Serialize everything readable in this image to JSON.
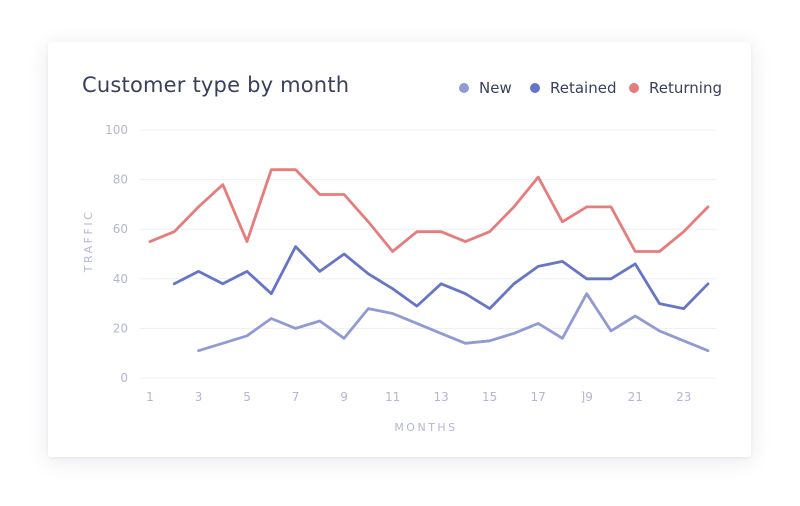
{
  "chart_data": {
    "type": "line",
    "title": "Customer type by month",
    "xlabel": "MONTHS",
    "ylabel": "TRAFFIC",
    "xlim": [
      1,
      24
    ],
    "ylim": [
      0,
      100
    ],
    "x_ticks": [
      "1",
      "3",
      "5",
      "7",
      "9",
      "11",
      "13",
      "15",
      "17",
      "]9",
      "21",
      "23"
    ],
    "y_ticks": [
      0,
      20,
      40,
      60,
      80,
      100
    ],
    "grid": true,
    "legend_position": "top-right",
    "series": [
      {
        "name": "New",
        "color": "#929ad3",
        "x": [
          3,
          4,
          5,
          6,
          7,
          8,
          9,
          10,
          11,
          12,
          13,
          14,
          15,
          16,
          17,
          18,
          19,
          20,
          21,
          22,
          23,
          24
        ],
        "y": [
          11,
          14,
          17,
          24,
          20,
          23,
          16,
          28,
          26,
          22,
          18,
          14,
          15,
          18,
          22,
          16,
          34,
          19,
          25,
          19,
          15,
          11
        ]
      },
      {
        "name": "Retained",
        "color": "#6775c6",
        "x": [
          2,
          3,
          4,
          5,
          6,
          7,
          8,
          9,
          10,
          11,
          12,
          13,
          14,
          15,
          16,
          17,
          18,
          19,
          20,
          21,
          22,
          23,
          24
        ],
        "y": [
          38,
          43,
          38,
          43,
          34,
          53,
          43,
          50,
          42,
          36,
          29,
          38,
          34,
          28,
          38,
          45,
          47,
          40,
          40,
          46,
          30,
          28,
          38
        ]
      },
      {
        "name": "Returning",
        "color": "#e77c7c",
        "x": [
          1,
          2,
          3,
          4,
          5,
          6,
          7,
          8,
          9,
          10,
          11,
          12,
          13,
          14,
          15,
          16,
          17,
          18,
          19,
          20,
          21,
          22,
          23,
          24
        ],
        "y": [
          55,
          59,
          69,
          78,
          55,
          84,
          84,
          74,
          74,
          63,
          51,
          59,
          59,
          55,
          59,
          69,
          81,
          63,
          69,
          69,
          51,
          51,
          59,
          69
        ]
      }
    ]
  }
}
